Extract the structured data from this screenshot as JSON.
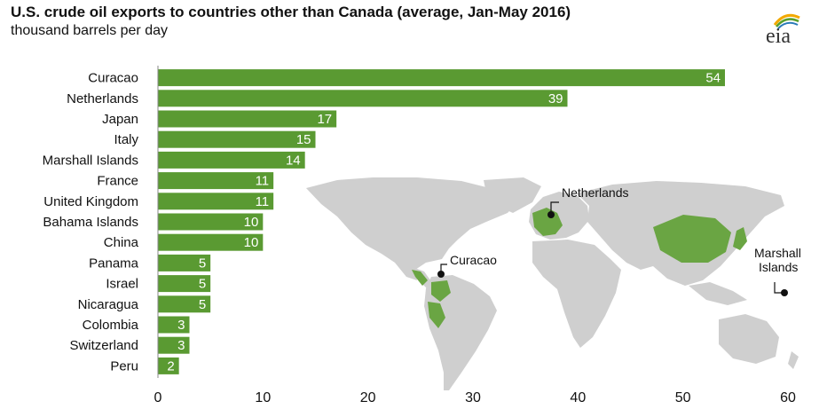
{
  "title": "U.S. crude oil exports to countries other than Canada (average, Jan-May 2016)",
  "subtitle": "thousand barrels per day",
  "logo": {
    "text": "eia",
    "icon": "eia-sun-arc-icon"
  },
  "colors": {
    "bar": "#5a9a32",
    "map_land": "#cfcfcf",
    "map_highlight": "#6aa543",
    "text": "#111111"
  },
  "chart_data": {
    "type": "bar",
    "orientation": "horizontal",
    "title": "U.S. crude oil exports to countries other than Canada (average, Jan-May 2016)",
    "subtitle": "thousand barrels per day",
    "categories": [
      "Curacao",
      "Netherlands",
      "Japan",
      "Italy",
      "Marshall Islands",
      "France",
      "United Kingdom",
      "Bahama Islands",
      "China",
      "Panama",
      "Israel",
      "Nicaragua",
      "Colombia",
      "Switzerland",
      "Peru"
    ],
    "values": [
      54,
      39,
      17,
      15,
      14,
      11,
      11,
      10,
      10,
      5,
      5,
      5,
      3,
      3,
      2
    ],
    "data_labels": [
      "54",
      "39",
      "17",
      "15",
      "14",
      "11",
      "11",
      "10",
      "10",
      "5",
      "5",
      "5",
      "3",
      "3",
      "2"
    ],
    "xlim": [
      0,
      60
    ],
    "xticks": [
      "0",
      "10",
      "20",
      "30",
      "40",
      "50",
      "60"
    ],
    "grid": false,
    "legend": "none"
  },
  "map": {
    "labels": {
      "netherlands": "Netherlands",
      "curacao": "Curacao",
      "marshall_line1": "Marshall",
      "marshall_line2": "Islands"
    }
  }
}
